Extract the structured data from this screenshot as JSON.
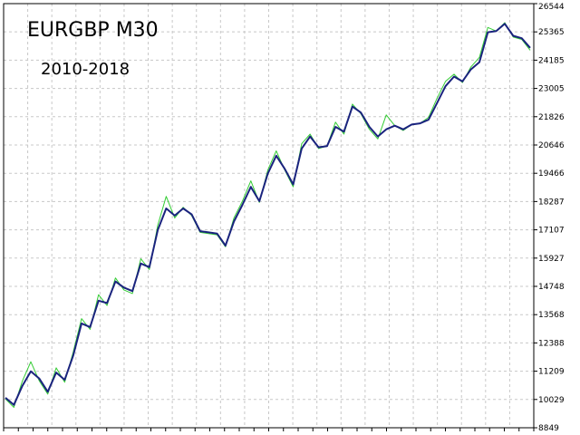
{
  "chart_data": {
    "type": "line",
    "title": "EURGBP M30",
    "subtitle": "2010-2018",
    "xlabel": "",
    "ylabel": "",
    "ylim": [
      8849,
      26544
    ],
    "yticks": [
      "26544",
      "25365",
      "24185",
      "23005",
      "21826",
      "20646",
      "19466",
      "18287",
      "17107",
      "15927",
      "14748",
      "13568",
      "12388",
      "11209",
      "10029",
      "8849"
    ],
    "grid": true,
    "colors": {
      "balance": "#1a237e",
      "equity": "#33cc33",
      "grid": "#c8c8c8",
      "frame": "#000000"
    },
    "series": [
      {
        "id": "balance",
        "values": [
          10100,
          9800,
          10600,
          11200,
          10900,
          10350,
          11150,
          10850,
          11850,
          13200,
          13050,
          14150,
          14050,
          14950,
          14700,
          14550,
          15700,
          15550,
          17100,
          18000,
          17700,
          18000,
          17750,
          17050,
          17000,
          16950,
          16450,
          17450,
          18150,
          18900,
          18300,
          19450,
          20200,
          19650,
          19000,
          20500,
          21000,
          20550,
          20600,
          21400,
          21200,
          22250,
          22000,
          21400,
          21000,
          21300,
          21450,
          21300,
          21500,
          21550,
          21700,
          22400,
          23100,
          23500,
          23300,
          23800,
          24100,
          25350,
          25400,
          25700,
          25200,
          25100,
          24700
        ]
      },
      {
        "id": "equity",
        "values": [
          10050,
          9700,
          10800,
          11600,
          10800,
          10250,
          11350,
          10750,
          12000,
          13400,
          12950,
          14400,
          13950,
          15100,
          14600,
          14450,
          15900,
          15450,
          17300,
          18500,
          17600,
          18050,
          17700,
          17000,
          16950,
          16900,
          16400,
          17600,
          18300,
          19150,
          18250,
          19600,
          20400,
          19600,
          18900,
          20700,
          21100,
          20500,
          20600,
          21600,
          21100,
          22350,
          21950,
          21300,
          20900,
          21900,
          21450,
          21250,
          21500,
          21550,
          21800,
          22600,
          23300,
          23600,
          23250,
          23900,
          24300,
          25550,
          25400,
          25750,
          25150,
          25050,
          24600
        ]
      }
    ]
  }
}
